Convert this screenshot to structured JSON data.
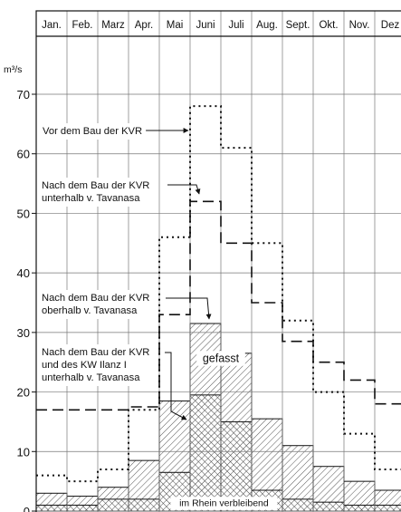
{
  "chart_data": {
    "type": "step",
    "categories": [
      "Jan.",
      "Feb.",
      "Marz",
      "Apr.",
      "Mai",
      "Juni",
      "Juli",
      "Aug.",
      "Sept.",
      "Okt.",
      "Nov.",
      "Dez"
    ],
    "unit_label": "m³/s",
    "ylim": [
      0,
      72
    ],
    "yticks": [
      0,
      10,
      20,
      30,
      40,
      50,
      60,
      70
    ],
    "grid": true,
    "series": [
      {
        "name": "Vor dem Bau der KVR",
        "style": "dotted",
        "values": [
          6,
          5,
          7,
          17,
          46,
          68,
          61,
          45,
          32,
          20,
          13,
          7
        ]
      },
      {
        "name": "Nach dem Bau der KVR unterhalb v. Tavanasa",
        "style": "dashed",
        "values": [
          17,
          17,
          17,
          17.5,
          33,
          52,
          45,
          35,
          28.5,
          25,
          22,
          18
        ]
      },
      {
        "name": "Nach dem Bau der KVR oberhalb v. Tavanasa",
        "style": "hatched-area",
        "values": [
          3,
          2.5,
          4,
          8.5,
          18.5,
          31.5,
          26.5,
          15.5,
          11,
          7.5,
          5,
          3.5
        ]
      },
      {
        "name": "Nach dem Bau der KVR und des KW Ilanz I unterhalb v. Tavanasa",
        "style": "crosshatched-area",
        "values": [
          1,
          1,
          2,
          2,
          6.5,
          19.5,
          15,
          3.5,
          2,
          1.5,
          1,
          1
        ]
      }
    ],
    "annotations": [
      {
        "text": "Vor dem Bau der KVR",
        "lines": [
          "Vor dem Bau der KVR"
        ],
        "target": {
          "month": 5,
          "value": 64
        }
      },
      {
        "text": "Nach dem Bau der KVR unterhalb v. Tavanasa",
        "lines": [
          "Nach dem Bau der KVR",
          "unterhalb v. Tavanasa"
        ],
        "target": {
          "month": 5.5,
          "value": 52
        }
      },
      {
        "text": "Nach dem Bau der KVR oberhalb v. Tavanasa",
        "lines": [
          "Nach dem Bau der KVR",
          "oberhalb v. Tavanasa"
        ],
        "target": {
          "month": 5.7,
          "value": 32
        }
      },
      {
        "text": "Nach dem Bau der KVR und des KW Ilanz I unterhalb v. Tavanasa",
        "lines": [
          "Nach dem Bau der KVR",
          "und des KW Ilanz I",
          "unterhalb v. Tavanasa"
        ],
        "target": {
          "month": 5.05,
          "value": 20
        }
      }
    ],
    "area_labels": [
      {
        "text": "gefasst",
        "month": 6,
        "value": 25
      },
      {
        "text": "im Rhein verbleibend",
        "month": 6.1,
        "value": 0.8
      }
    ]
  }
}
